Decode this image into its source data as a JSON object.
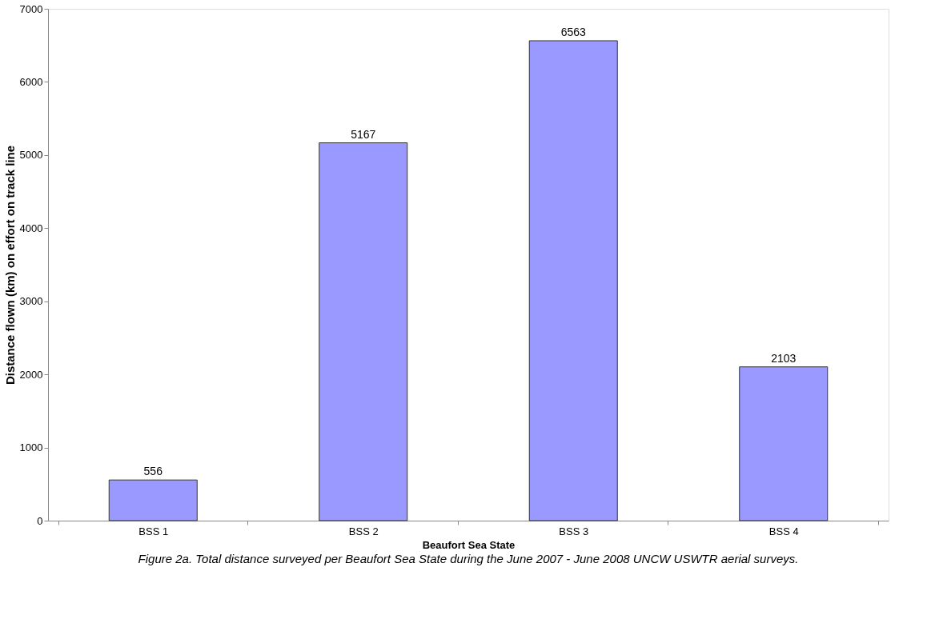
{
  "chart_data": {
    "type": "bar",
    "title": "Figure 2a.  Total distance surveyed per Beaufort Sea State during the June 2007 - June 2008 UNCW USWTR aerial surveys.",
    "xlabel": "Beaufort Sea State",
    "ylabel": "Distance flown (km) on effort on track line",
    "categories": [
      "BSS 1",
      "BSS 2",
      "BSS 3",
      "BSS 4"
    ],
    "values": [
      556,
      5167,
      6563,
      2103
    ],
    "color": "#9999ff",
    "ylim": [
      0,
      7000
    ],
    "yticks": [
      0,
      1000,
      2000,
      3000,
      4000,
      5000,
      6000,
      7000
    ],
    "grid": false,
    "data_labels": true
  }
}
